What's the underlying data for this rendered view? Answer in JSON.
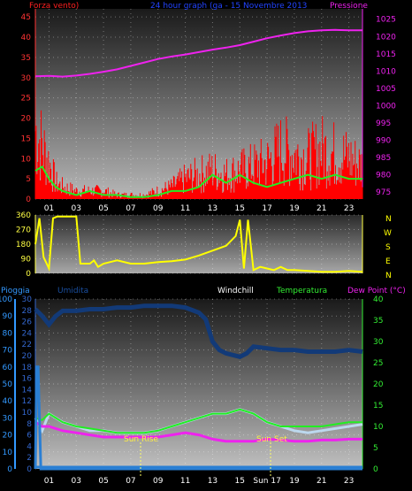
{
  "header": {
    "left": "Forza vento)",
    "center": "24 hour graph (ga - 15 Novembre 2013",
    "right": "Pressione"
  },
  "panel3_header": {
    "rain": "Pioggia",
    "humidity": "Umidita",
    "windchill": "Windchill",
    "temperature": "Temperatura",
    "dewpoint": "Dew Point (°C)"
  },
  "compass": [
    "N",
    "W",
    "S",
    "E",
    "N"
  ],
  "annotations": {
    "sunrise": "Sun Rise",
    "sunset": "Sun Set",
    "sunset_hour": "Sun"
  },
  "colors": {
    "wind": "#ff0000",
    "gust": "#22ee22",
    "pressure": "#ee22ee",
    "direction": "#ffff00",
    "humidity": "#123a78",
    "temperature": "#22ee22",
    "windchill": "#bcd8ee",
    "dewpoint": "#ee22ee",
    "rain": "#2a7fd4",
    "axis_left": "#ff3333",
    "axis_rain": "#3399ff",
    "axis_temp": "#33ee33"
  },
  "chart_data": [
    {
      "type": "line",
      "title": "24 hour graph (ga - 15 Novembre 2013",
      "x_ticks": [
        "01",
        "03",
        "05",
        "07",
        "09",
        "11",
        "13",
        "15",
        "17",
        "19",
        "21",
        "23"
      ],
      "y_left_ticks": [
        "0",
        "5",
        "10",
        "15",
        "20",
        "25",
        "30",
        "35",
        "40",
        "45"
      ],
      "y_right_ticks": [
        "975",
        "980",
        "985",
        "990",
        "995",
        "1000",
        "1005",
        "1010",
        "1015",
        "1020",
        "1025"
      ],
      "ylim_left": [
        0,
        47
      ],
      "ylim_right": [
        973,
        1028
      ],
      "series": [
        {
          "name": "Forza vento)",
          "axis": "left",
          "x": [
            0,
            0.5,
            1,
            1.5,
            2,
            3,
            4,
            5,
            6,
            7,
            8,
            9,
            10,
            11,
            12,
            13,
            14,
            15,
            16,
            17,
            18,
            19,
            20,
            21,
            22,
            23,
            24
          ],
          "values": [
            17,
            13,
            9,
            4,
            3,
            2,
            2,
            2,
            1,
            1,
            1,
            2,
            3,
            5,
            6,
            7,
            6,
            7,
            8,
            9,
            12,
            11,
            10,
            12,
            11,
            10,
            8
          ]
        },
        {
          "name": "",
          "axis": "left",
          "x": [
            0,
            0.5,
            1,
            1.5,
            2,
            3,
            4,
            5,
            6,
            7,
            8,
            9,
            10,
            11,
            12,
            13,
            14,
            15,
            16,
            17,
            18,
            19,
            20,
            21,
            22,
            23,
            24
          ],
          "values": [
            7,
            8,
            5,
            3,
            2,
            1,
            2,
            1,
            1,
            0.5,
            0.5,
            1,
            2,
            2,
            3,
            6,
            4,
            6,
            4,
            3,
            4,
            5,
            6,
            5,
            6,
            5,
            5
          ]
        },
        {
          "name": "Pressione",
          "axis": "right",
          "x": [
            0,
            1,
            2,
            3,
            4,
            5,
            6,
            7,
            8,
            9,
            10,
            11,
            12,
            13,
            14,
            15,
            16,
            17,
            18,
            19,
            20,
            21,
            22,
            23,
            24
          ],
          "values": [
            1008.5,
            1008.6,
            1008.4,
            1008.7,
            1009.2,
            1009.8,
            1010.5,
            1011.5,
            1012.5,
            1013.5,
            1014.2,
            1014.8,
            1015.5,
            1016.2,
            1016.8,
            1017.5,
            1018.5,
            1019.5,
            1020.3,
            1021.0,
            1021.5,
            1021.8,
            1021.9,
            1021.8,
            1021.8
          ]
        }
      ]
    },
    {
      "type": "line",
      "x_ticks": [],
      "y_ticks": [
        "0",
        "90",
        "180",
        "270",
        "360"
      ],
      "ylim": [
        0,
        360
      ],
      "series": [
        {
          "name": "",
          "x": [
            0,
            0.3,
            0.6,
            1,
            1.3,
            1.6,
            2,
            2.3,
            2.6,
            3,
            3.3,
            3.6,
            4,
            4.3,
            4.6,
            5,
            6,
            7,
            8,
            9,
            10,
            11,
            12,
            13,
            14,
            14.7,
            15,
            15.3,
            15.6,
            16,
            16.5,
            17,
            17.5,
            18,
            18.5,
            19,
            20,
            21,
            22,
            23,
            24
          ],
          "values": [
            180,
            340,
            100,
            30,
            340,
            350,
            350,
            350,
            350,
            350,
            60,
            60,
            60,
            80,
            40,
            60,
            80,
            60,
            60,
            70,
            75,
            85,
            110,
            140,
            170,
            230,
            330,
            30,
            330,
            20,
            40,
            30,
            20,
            40,
            20,
            20,
            15,
            10,
            10,
            15,
            10
          ]
        }
      ]
    },
    {
      "type": "line",
      "x_ticks": [
        "01",
        "03",
        "05",
        "07",
        "09",
        "11",
        "13",
        "15",
        "Sun 17",
        "19",
        "21",
        "23"
      ],
      "y_left_ticks": [
        "0",
        "10",
        "20",
        "30",
        "40",
        "50",
        "60",
        "70",
        "80",
        "90",
        "100"
      ],
      "y_rain_ticks": [
        "0",
        "2",
        "4",
        "6",
        "8",
        "10",
        "12",
        "14",
        "16",
        "18",
        "20",
        "22",
        "24",
        "26",
        "28",
        "30"
      ],
      "y_right_ticks": [
        "0",
        "5",
        "10",
        "15",
        "20",
        "25",
        "30",
        "35",
        "40"
      ],
      "ylim_left": [
        0,
        100
      ],
      "ylim_right": [
        0,
        40
      ],
      "series": [
        {
          "name": "Umidita",
          "axis": "left",
          "x": [
            0,
            0.5,
            1,
            1.5,
            2,
            3,
            4,
            5,
            6,
            7,
            8,
            9,
            10,
            11,
            12,
            12.5,
            13,
            13.5,
            14,
            15,
            15.5,
            16,
            17,
            18,
            19,
            20,
            21,
            22,
            23,
            24
          ],
          "values": [
            94,
            90,
            85,
            90,
            93,
            93,
            94,
            94,
            95,
            95,
            96,
            96,
            96,
            95,
            92,
            88,
            75,
            70,
            68,
            66,
            68,
            72,
            71,
            70,
            70,
            69,
            69,
            69,
            70,
            69
          ]
        },
        {
          "name": "Temperatura",
          "axis": "right",
          "x": [
            0,
            0.5,
            1,
            1.5,
            2,
            3,
            4,
            5,
            6,
            7,
            8,
            9,
            10,
            11,
            12,
            13,
            14,
            15,
            16,
            17,
            18,
            19,
            20,
            21,
            22,
            23,
            24
          ],
          "values": [
            12,
            11.5,
            13,
            12,
            11,
            10,
            9.5,
            9,
            8.5,
            8.5,
            8.5,
            9,
            10,
            11,
            12,
            13,
            13,
            14,
            13,
            11,
            10,
            10,
            10,
            10,
            10.5,
            11,
            11
          ]
        },
        {
          "name": "Windchill",
          "axis": "right",
          "x": [
            0,
            0.5,
            1,
            1.5,
            2,
            3,
            4,
            5,
            6,
            7,
            8,
            9,
            10,
            11,
            12,
            13,
            14,
            15,
            16,
            17,
            18,
            19,
            20,
            21,
            22,
            23,
            24
          ],
          "values": [
            12,
            9,
            13,
            12,
            11,
            10,
            9,
            9,
            8.5,
            8.5,
            8.5,
            9,
            10,
            11,
            12,
            13,
            13,
            14,
            13,
            11,
            10,
            9,
            8.5,
            9,
            9.5,
            10,
            10.5
          ]
        },
        {
          "name": "Dew Point (°C)",
          "axis": "right",
          "x": [
            0,
            0.5,
            1,
            1.5,
            2,
            3,
            4,
            5,
            6,
            7,
            8,
            9,
            10,
            11,
            12,
            13,
            14,
            15,
            16,
            17,
            18,
            19,
            20,
            21,
            22,
            23,
            24
          ],
          "values": [
            11,
            10,
            10,
            9.5,
            9,
            8.5,
            8,
            7.5,
            7.5,
            7.5,
            7.5,
            7.5,
            8,
            8.5,
            8,
            7,
            6.5,
            6.5,
            6.5,
            7,
            6.8,
            6.5,
            6.5,
            6.8,
            6.8,
            7,
            7
          ]
        },
        {
          "name": "Pioggia",
          "axis": "left",
          "x": [
            0,
            0.1,
            0.2,
            0.4,
            24
          ],
          "values": [
            0,
            60,
            60,
            0,
            0
          ]
        }
      ]
    }
  ]
}
